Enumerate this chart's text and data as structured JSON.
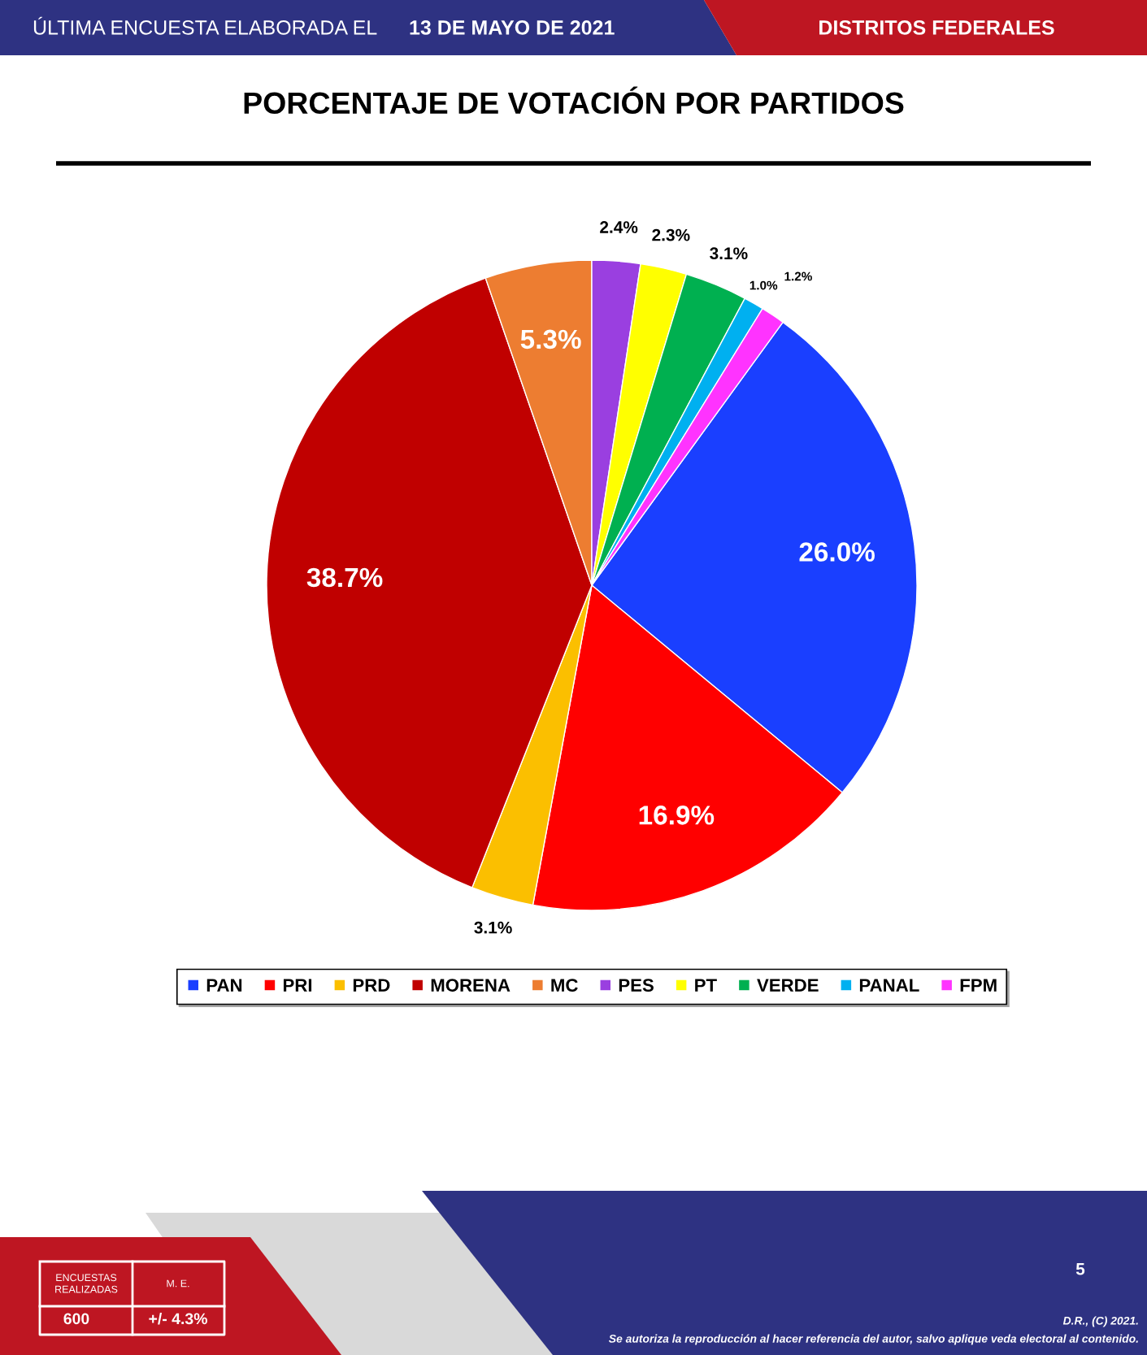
{
  "chart_data": {
    "type": "pie",
    "title": "PORCENTAJE DE VOTACIÓN POR PARTIDOS",
    "categories": [
      "PAN",
      "PRI",
      "PRD",
      "MORENA",
      "MC",
      "PES",
      "PT",
      "VERDE",
      "PANAL",
      "FPM"
    ],
    "values": [
      26.0,
      16.9,
      3.1,
      38.7,
      5.3,
      2.4,
      2.3,
      3.1,
      1.0,
      1.2
    ],
    "colors": [
      "#1a3fff",
      "#ff0000",
      "#fbbf00",
      "#c00000",
      "#ed7d31",
      "#9a3fe0",
      "#ffff00",
      "#00b050",
      "#00b0f0",
      "#ff33ff"
    ],
    "value_labels": [
      "26.0%",
      "16.9%",
      "3.1%",
      "38.7%",
      "5.3%",
      "2.4%",
      "2.3%",
      "3.1%",
      "1.0%",
      "1.2%"
    ],
    "legend": "bottom",
    "annotations": [
      "ÚLTIMA ENCUESTA ELABORADA EL",
      "13 DE MAYO DE 2021",
      "DISTRITOS FEDERALES",
      "ENCUESTAS\nREALIZADAS",
      "M. E.",
      "600",
      "+/- 4.3%",
      "5",
      "D.R., (C) 2021.",
      "Se autoriza la reproducción al hacer referencia del autor, salvo aplique veda electoral al contenido."
    ]
  }
}
